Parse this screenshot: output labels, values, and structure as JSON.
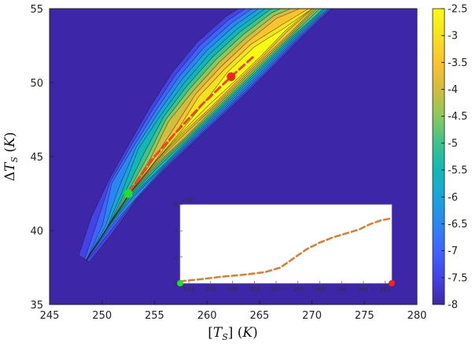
{
  "chart_data": [
    {
      "type": "heatmap",
      "title": "",
      "xlabel": "[T_S] (K)",
      "ylabel": "ΔT_S (K)",
      "xlim": [
        245,
        280
      ],
      "ylim": [
        35,
        55
      ],
      "x_ticks": [
        "245",
        "250",
        "255",
        "260",
        "265",
        "270",
        "275",
        "280"
      ],
      "y_ticks": [
        "35",
        "40",
        "45",
        "50",
        "55"
      ],
      "colorbar": {
        "range": [
          -8,
          -2.5
        ],
        "ticks": [
          "-2.5",
          "-3",
          "-3.5",
          "-4",
          "-4.5",
          "-5",
          "-5.5",
          "-6",
          "-6.5",
          "-7",
          "-7.5",
          "-8"
        ],
        "colors": [
          "#3e26a8",
          "#4443e5",
          "#3f64fb",
          "#2b86f3",
          "#1ba3dc",
          "#11b7b7",
          "#3fc38a",
          "#8ec958",
          "#d4bc3c",
          "#fbc32f",
          "#f5e21f",
          "#f9fb14"
        ]
      },
      "ridge": {
        "x": [
          248.5,
          250.5,
          252.5,
          255,
          257.5,
          260,
          262.5,
          265,
          267.5,
          270,
          272.5
        ],
        "y": [
          38,
          40.2,
          42.4,
          44.6,
          46.6,
          48.5,
          50.3,
          52,
          53.6,
          55,
          56.3
        ]
      },
      "dashed_path": {
        "x": [
          252.6,
          254.5,
          257,
          259.5,
          262.3,
          264.5
        ],
        "y": [
          42.6,
          44.6,
          46.6,
          48.5,
          50.4,
          51.8
        ],
        "color": "#e8482c"
      },
      "markers": [
        {
          "name": "start",
          "x": 252.5,
          "y": 42.5,
          "color": "#22e022"
        },
        {
          "name": "end",
          "x": 262.3,
          "y": 50.4,
          "color": "#f0261c"
        }
      ]
    },
    {
      "type": "line",
      "title": "",
      "xlabel": "",
      "ylabel": "",
      "multiplier": "×10⁴",
      "xlim": [
        252.6,
        262.3
      ],
      "ylim": [
        0,
        6
      ],
      "x_ticks": [
        "253",
        "254",
        "255",
        "256",
        "257",
        "258",
        "259",
        "260",
        "261",
        "262"
      ],
      "y_ticks": [
        "0",
        "2",
        "4",
        "6"
      ],
      "x": [
        252.6,
        253.5,
        254.5,
        255.5,
        256.5,
        257.2,
        257.8,
        258.4,
        259,
        259.6,
        260.2,
        260.8,
        261.3,
        261.8,
        262.3
      ],
      "y": [
        0.15,
        0.3,
        0.5,
        0.65,
        0.85,
        1.2,
        1.9,
        2.6,
        3.1,
        3.5,
        3.8,
        4.1,
        4.5,
        4.8,
        4.95
      ],
      "color": "#e07a2c",
      "markers": [
        {
          "name": "start",
          "x": 252.6,
          "y": 0,
          "color": "#22e022"
        },
        {
          "name": "end",
          "x": 262.3,
          "y": 0,
          "color": "#f0261c"
        }
      ]
    }
  ]
}
